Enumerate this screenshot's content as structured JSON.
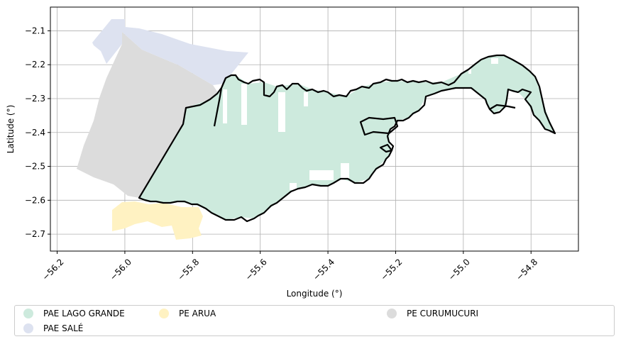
{
  "chart_data": {
    "type": "map",
    "title": "",
    "xlabel": "Longitude (°)",
    "ylabel": "Latitude (°)",
    "xlim": [
      -56.22,
      -54.66
    ],
    "ylim": [
      -2.75,
      -2.03
    ],
    "xticks": [
      -56.2,
      -56.0,
      -55.8,
      -55.6,
      -55.4,
      -55.2,
      -55.0,
      -54.8
    ],
    "xtick_labels": [
      "−56.2",
      "−56.0",
      "−55.8",
      "−55.6",
      "−55.4",
      "−55.2",
      "−55.0",
      "−54.8"
    ],
    "yticks": [
      -2.1,
      -2.2,
      -2.3,
      -2.4,
      -2.5,
      -2.6,
      -2.7
    ],
    "ytick_labels": [
      "−2.1",
      "−2.2",
      "−2.3",
      "−2.4",
      "−2.5",
      "−2.6",
      "−2.7"
    ],
    "grid": true,
    "legend_position": "bottom",
    "layers": [
      {
        "name": "PAE LAGO GRANDE",
        "color": "#cdeadd"
      },
      {
        "name": "PAE SALÉ",
        "color": "#dde2f0"
      },
      {
        "name": "PE ARUA",
        "color": "#fff2c2"
      },
      {
        "name": "PE CURUMUCURI",
        "color": "#dcdcdc"
      }
    ]
  }
}
